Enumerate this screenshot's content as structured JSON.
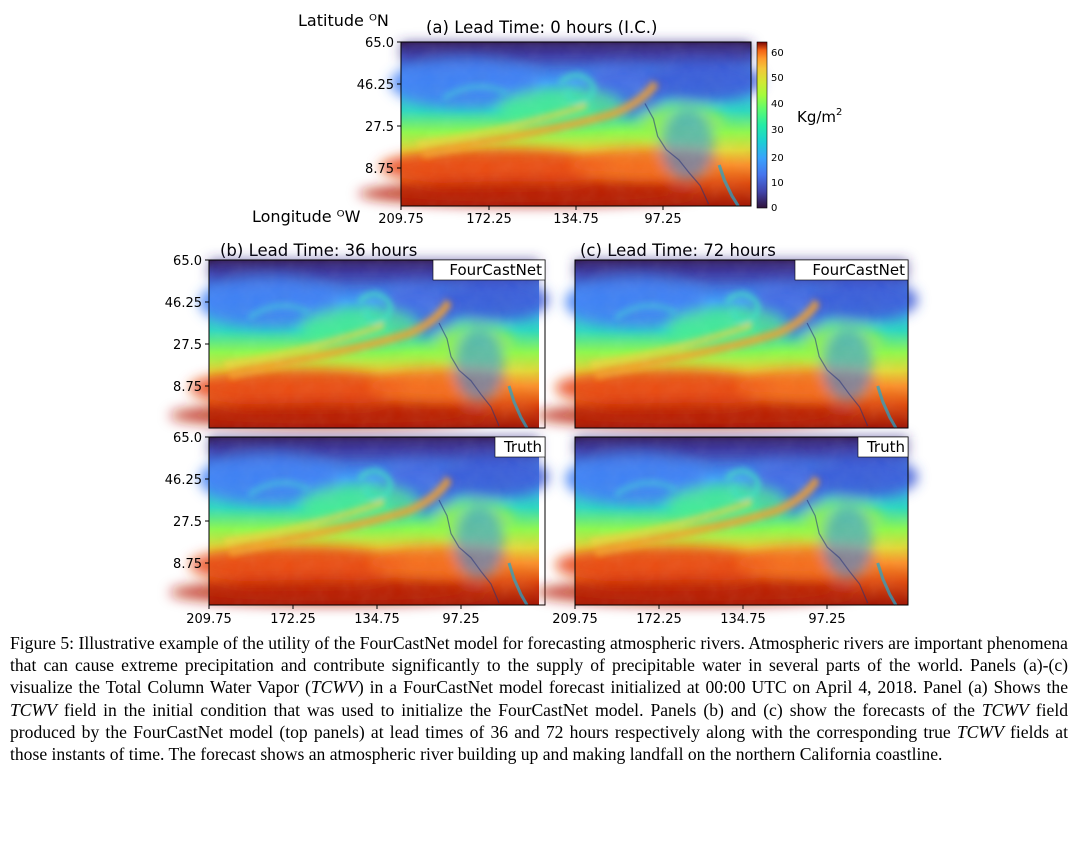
{
  "figure": {
    "axis_titles": {
      "lat": "Latitude ᴼN",
      "lon": "Longitude ᴼW"
    },
    "panels": {
      "a": {
        "title": "(a) Lead Time: 0 hours (I.C.)"
      },
      "b": {
        "title": "(b) Lead Time: 36 hours"
      },
      "c": {
        "title": "(c) Lead Time: 72 hours"
      }
    },
    "tags": {
      "model": "FourCastNet",
      "truth": "Truth"
    },
    "lat_ticks": [
      "65.0",
      "46.25",
      "27.5",
      "8.75"
    ],
    "lon_ticks": [
      "209.75",
      "172.25",
      "134.75",
      "97.25"
    ],
    "colorbar": {
      "ticks": [
        "60",
        "50",
        "40",
        "30",
        "20",
        "10",
        "0"
      ],
      "unit_base": "Kg/m",
      "unit_sup": "2",
      "range": [
        0,
        65
      ]
    },
    "colors": {
      "low": "#30123b",
      "mid_blue": "#3e9bfe",
      "cyan": "#1ae4b6",
      "green": "#a4fc3c",
      "yellow": "#fabb39",
      "orange": "#f66b19",
      "high": "#7a0403"
    }
  },
  "caption": {
    "label": "Figure 5:",
    "p1": "Illustrative example of the utility of the FourCastNet model for forecasting atmospheric rivers. Atmospheric rivers are important phenomena that can cause extreme precipitation and contribute significantly to the supply of precipitable water in several parts of the world. Panels (a)-(c) visualize the Total Column Water Vapor (",
    "m1": "TCWV",
    "p2": ") in a FourCastNet model forecast initialized at 00:00 UTC on April 4, 2018. Panel (a) Shows the ",
    "m2": "TCWV",
    "p3": " field in the initial condition that was used to initialize the FourCastNet model. Panels (b) and (c) show the forecasts of the ",
    "m3": "TCWV",
    "p4": " field produced by the FourCastNet model (top panels) at lead times of 36 and 72 hours respectively along with the corresponding true ",
    "m4": "TCWV",
    "p5": " fields at those instants of time. The forecast shows an atmospheric river building up and making landfall on the northern California coastline."
  }
}
